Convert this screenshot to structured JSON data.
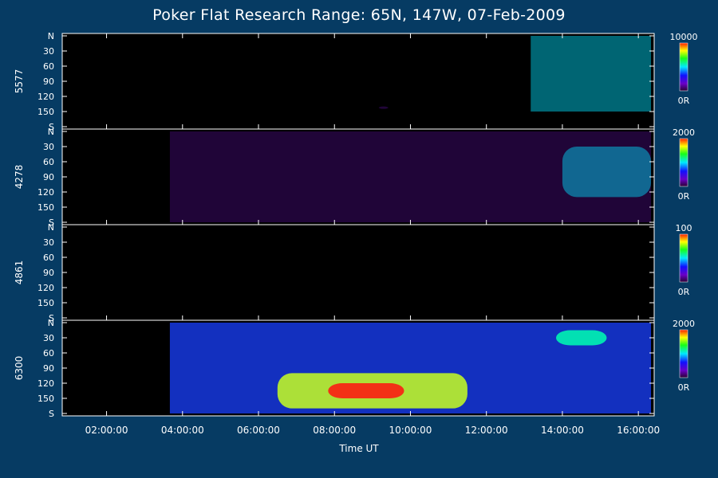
{
  "title": "Poker Flat Research Range: 65N, 147W, 07-Feb-2009",
  "colors": {
    "background": "#063b63",
    "panel": "#000000",
    "axis": "#ffffff"
  },
  "chart_data": {
    "type": "heatmap",
    "title": "Poker Flat Research Range: 65N, 147W, 07-Feb-2009",
    "xlabel": "Time UT",
    "xlim": [
      "00:50:00",
      "16:25:00"
    ],
    "x_ticks": [
      "02:00:00",
      "04:00:00",
      "06:00:00",
      "08:00:00",
      "10:00:00",
      "12:00:00",
      "14:00:00",
      "16:00:00"
    ],
    "y_ticks": [
      "N",
      "30",
      "60",
      "90",
      "120",
      "150",
      "S"
    ],
    "grid": false,
    "colormap": "rainbow (black-purple-blue-cyan-green-yellow-red)",
    "panels": [
      {
        "label": "5577",
        "scale_max": "10000",
        "scale_min": "0R",
        "features": [
          {
            "start": "13:10:00",
            "end": "16:20:00",
            "level": "medium-high",
            "region": "N-150"
          },
          {
            "start": "09:10:00",
            "end": "09:25:00",
            "level": "low",
            "region": "140"
          }
        ]
      },
      {
        "label": "4278",
        "scale_max": "2000",
        "scale_min": "0R",
        "features": [
          {
            "start": "03:40:00",
            "end": "16:20:00",
            "level": "low",
            "region": "N-S"
          },
          {
            "start": "14:00:00",
            "end": "16:20:00",
            "level": "medium-high",
            "region": "30-130"
          }
        ]
      },
      {
        "label": "4861",
        "scale_max": "100",
        "scale_min": "0R",
        "features": []
      },
      {
        "label": "6300",
        "scale_max": "2000",
        "scale_min": "0R",
        "data_start": "03:40:00",
        "features": [
          {
            "start": "03:40:00",
            "end": "16:20:00",
            "level": "low-medium",
            "region": "N-S"
          },
          {
            "start": "06:30:00",
            "end": "11:30:00",
            "level": "medium-high",
            "region": "100-170"
          },
          {
            "start": "07:50:00",
            "end": "09:50:00",
            "level": "high",
            "region": "120-150"
          },
          {
            "start": "13:50:00",
            "end": "15:10:00",
            "level": "medium",
            "region": "15-45"
          }
        ]
      }
    ]
  }
}
